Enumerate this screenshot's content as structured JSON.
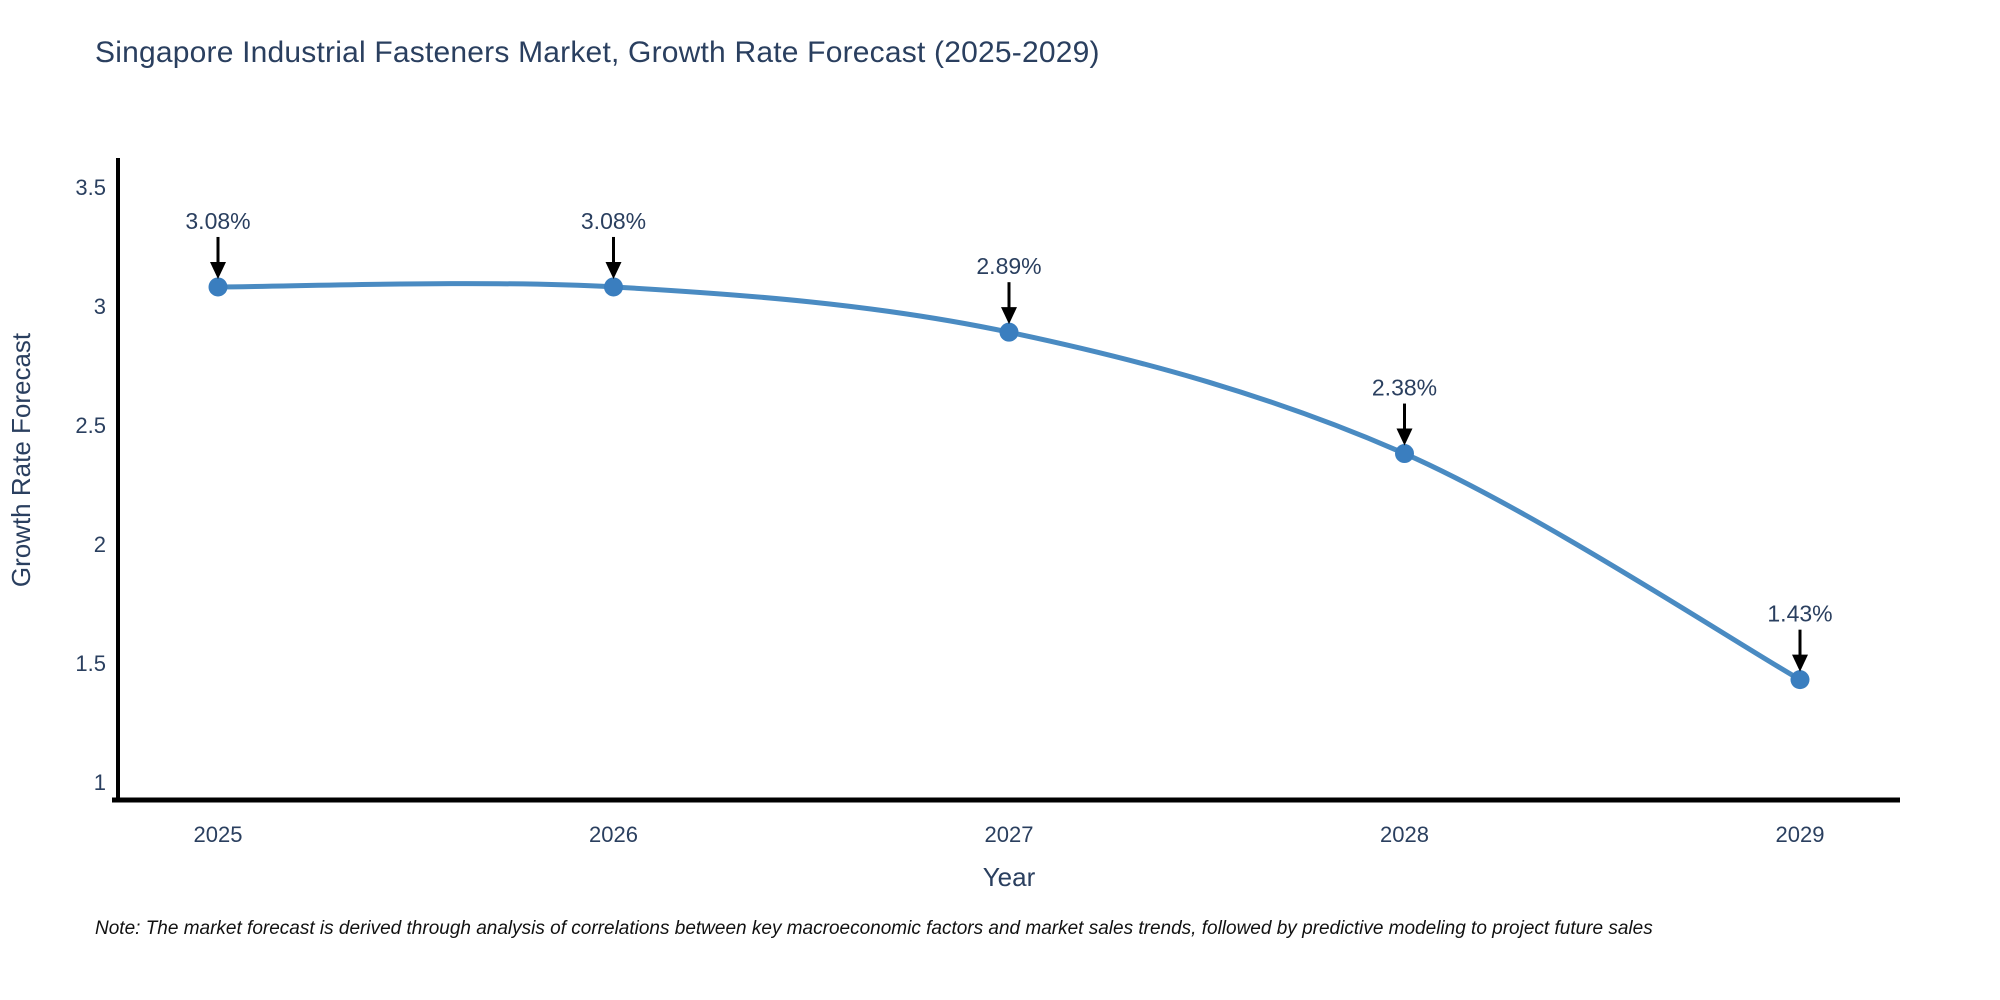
{
  "title": "Singapore Industrial Fasteners Market, Growth Rate Forecast (2025-2029)",
  "note": "Note: The market forecast is derived through analysis of correlations between key macroeconomic factors and market sales trends, followed by predictive modeling to project future sales",
  "chart_data": {
    "type": "line",
    "title": "Singapore Industrial Fasteners Market, Growth Rate Forecast (2025-2029)",
    "xlabel": "Year",
    "ylabel": "Growth Rate Forecast",
    "x": [
      2025,
      2026,
      2027,
      2028,
      2029
    ],
    "values": [
      3.08,
      3.08,
      2.89,
      2.38,
      1.43
    ],
    "point_labels": [
      "3.08%",
      "3.08%",
      "2.89%",
      "2.38%",
      "1.43%"
    ],
    "yticks": [
      1,
      1.5,
      2,
      2.5,
      3,
      3.5
    ],
    "ylim": [
      0.92,
      3.69
    ],
    "xlim": [
      2024.75,
      2029.27
    ],
    "line_shape": "spline",
    "grid": false,
    "legend": "none",
    "colors": {
      "line": "#4a8bc2",
      "marker": "#3a7ebf",
      "axis": "#000000",
      "arrow": "#000000",
      "text": "#2a3f5f",
      "note": "#111111"
    }
  }
}
